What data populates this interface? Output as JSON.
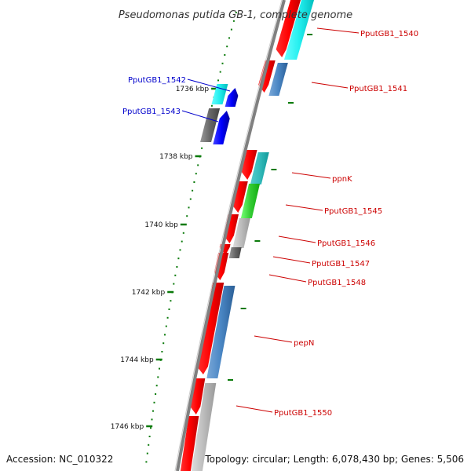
{
  "title": "Pseudomonas putida GB-1, complete genome",
  "footer": {
    "accession": "Accession: NC_010322",
    "topology": "Topology: circular; Length: 6,078,430 bp; Genes: 5,506"
  },
  "colors": {
    "backbone": "#808080",
    "tick": "#0a7a0a",
    "forward_label": "#cc0000",
    "reverse_label": "#0000cc"
  },
  "ticks": [
    {
      "label": "1736 kbp"
    },
    {
      "label": "1738 kbp"
    },
    {
      "label": "1740 kbp"
    },
    {
      "label": "1742 kbp"
    },
    {
      "label": "1744 kbp"
    },
    {
      "label": "1746 kbp"
    }
  ],
  "labels": [
    {
      "text": "PputGB1_1540",
      "strand": "forward"
    },
    {
      "text": "PputGB1_1541",
      "strand": "forward"
    },
    {
      "text": "PputGB1_1542",
      "strand": "reverse"
    },
    {
      "text": "PputGB1_1543",
      "strand": "reverse"
    },
    {
      "text": "ppnK",
      "strand": "forward"
    },
    {
      "text": "PputGB1_1545",
      "strand": "forward"
    },
    {
      "text": "PputGB1_1546",
      "strand": "forward"
    },
    {
      "text": "PputGB1_1547",
      "strand": "forward"
    },
    {
      "text": "PputGB1_1548",
      "strand": "forward"
    },
    {
      "text": "pepN",
      "strand": "forward"
    },
    {
      "text": "PputGB1_1550",
      "strand": "forward"
    }
  ]
}
